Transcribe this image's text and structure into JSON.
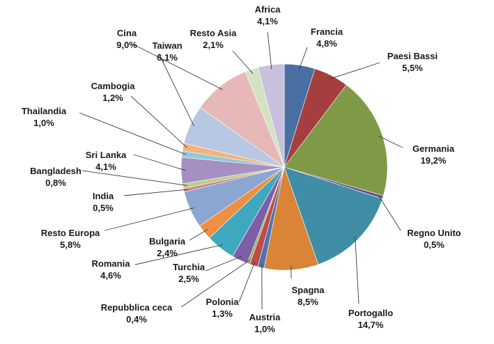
{
  "chart_data": {
    "type": "pie",
    "title": "",
    "legend": "none",
    "slices": [
      {
        "name": "Francia",
        "value": 4.8,
        "label": "4,8%",
        "color": "#4a6fa3"
      },
      {
        "name": "Paesi Bassi",
        "value": 5.5,
        "label": "5,5%",
        "color": "#a53f3f"
      },
      {
        "name": "Germania",
        "value": 19.2,
        "label": "19,2%",
        "color": "#7f9a47"
      },
      {
        "name": "Regno Unito",
        "value": 0.5,
        "label": "0,5%",
        "color": "#6b4f8f"
      },
      {
        "name": "Portogallo",
        "value": 14.7,
        "label": "14,7%",
        "color": "#3f8ea6"
      },
      {
        "name": "Spagna",
        "value": 8.5,
        "label": "8,5%",
        "color": "#d98436"
      },
      {
        "name": "Austria",
        "value": 1.0,
        "label": "1,0%",
        "color": "#4d75b0"
      },
      {
        "name": "Polonia",
        "value": 1.3,
        "label": "1,3%",
        "color": "#bf4b4b"
      },
      {
        "name": "Repubblica ceca",
        "value": 0.4,
        "label": "0,4%",
        "color": "#93b35a"
      },
      {
        "name": "Turchia",
        "value": 2.5,
        "label": "2,5%",
        "color": "#7c5fa6"
      },
      {
        "name": "Romania",
        "value": 4.6,
        "label": "4,6%",
        "color": "#3fa8bf"
      },
      {
        "name": "Bulgaria",
        "value": 2.4,
        "label": "2,4%",
        "color": "#ee8f43"
      },
      {
        "name": "Resto Europa",
        "value": 5.8,
        "label": "5,8%",
        "color": "#8aa6d1"
      },
      {
        "name": "India",
        "value": 0.5,
        "label": "0,5%",
        "color": "#d47f7f"
      },
      {
        "name": "Bangladesh",
        "value": 0.8,
        "label": "0,8%",
        "color": "#b9cd8f"
      },
      {
        "name": "Sri Lanka",
        "value": 4.1,
        "label": "4,1%",
        "color": "#a68fc2"
      },
      {
        "name": "Thailandia",
        "value": 1.0,
        "label": "1,0%",
        "color": "#8fcad6"
      },
      {
        "name": "Cambogia",
        "value": 1.2,
        "label": "1,2%",
        "color": "#f4b27e"
      },
      {
        "name": "Taiwan",
        "value": 6.1,
        "label": "6,1%",
        "color": "#b8c8e3"
      },
      {
        "name": "Cina",
        "value": 9.0,
        "label": "9,0%",
        "color": "#e6b8b8"
      },
      {
        "name": "Resto Asia",
        "value": 2.1,
        "label": "2,1%",
        "color": "#d3e2bf"
      },
      {
        "name": "Africa",
        "value": 4.1,
        "label": "4,1%",
        "color": "#c8c0dc"
      }
    ]
  }
}
